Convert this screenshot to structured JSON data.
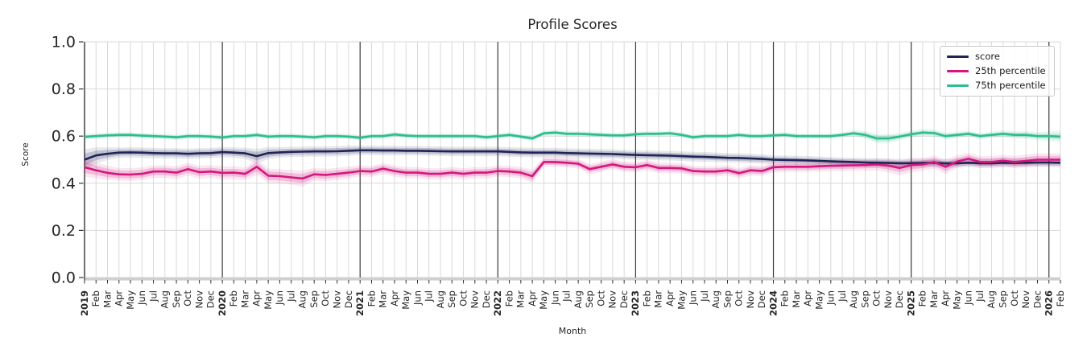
{
  "chart_data": {
    "type": "line",
    "title": "Profile Scores",
    "xlabel": "Month",
    "ylabel": "Score",
    "ylim": [
      0.0,
      1.0
    ],
    "yticks": [
      0.0,
      0.2,
      0.4,
      0.6,
      0.8,
      1.0
    ],
    "grid": "on",
    "legend_position": "upper right",
    "x_labels": [
      "2019",
      "Feb",
      "Mar",
      "Apr",
      "May",
      "Jun",
      "Jul",
      "Aug",
      "Sep",
      "Oct",
      "Nov",
      "Dec",
      "2020",
      "Feb",
      "Mar",
      "Apr",
      "May",
      "Jun",
      "Jul",
      "Aug",
      "Sep",
      "Oct",
      "Nov",
      "Dec",
      "2021",
      "Feb",
      "Mar",
      "Apr",
      "May",
      "Jun",
      "Jul",
      "Aug",
      "Sep",
      "Oct",
      "Nov",
      "Dec",
      "2022",
      "Feb",
      "Mar",
      "Apr",
      "May",
      "Jun",
      "Jul",
      "Aug",
      "Sep",
      "Oct",
      "Nov",
      "Dec",
      "2023",
      "Feb",
      "Mar",
      "Apr",
      "May",
      "Jun",
      "Jul",
      "Aug",
      "Sep",
      "Oct",
      "Nov",
      "Dec",
      "2024",
      "Feb",
      "Mar",
      "Apr",
      "May",
      "Jun",
      "Jul",
      "Aug",
      "Sep",
      "Oct",
      "Nov",
      "Dec",
      "2025",
      "Feb",
      "Mar",
      "Apr",
      "May",
      "Jun",
      "Jul",
      "Aug",
      "Sep",
      "Oct",
      "Nov",
      "Dec",
      "2026",
      "Feb"
    ],
    "series": [
      {
        "name": "score",
        "color": "#1f2456",
        "values": [
          0.5,
          0.518,
          0.525,
          0.53,
          0.531,
          0.53,
          0.528,
          0.527,
          0.527,
          0.525,
          0.527,
          0.528,
          0.532,
          0.53,
          0.527,
          0.515,
          0.528,
          0.531,
          0.533,
          0.534,
          0.535,
          0.535,
          0.536,
          0.538,
          0.54,
          0.54,
          0.539,
          0.539,
          0.538,
          0.538,
          0.537,
          0.536,
          0.535,
          0.535,
          0.535,
          0.535,
          0.535,
          0.533,
          0.531,
          0.53,
          0.53,
          0.53,
          0.528,
          0.527,
          0.526,
          0.525,
          0.524,
          0.522,
          0.52,
          0.519,
          0.518,
          0.517,
          0.515,
          0.513,
          0.512,
          0.51,
          0.508,
          0.507,
          0.505,
          0.503,
          0.5,
          0.499,
          0.498,
          0.497,
          0.495,
          0.493,
          0.491,
          0.49,
          0.488,
          0.487,
          0.486,
          0.485,
          0.485,
          0.486,
          0.487,
          0.484,
          0.485,
          0.487,
          0.485,
          0.485,
          0.487,
          0.486,
          0.487,
          0.488,
          0.488,
          0.487
        ],
        "ci": [
          0.026,
          0.02,
          0.016,
          0.013,
          0.013,
          0.013,
          0.013,
          0.013,
          0.013,
          0.013,
          0.013,
          0.013,
          0.013,
          0.013,
          0.014,
          0.018,
          0.015,
          0.013,
          0.013,
          0.013,
          0.013,
          0.013,
          0.013,
          0.013,
          0.012,
          0.012,
          0.012,
          0.012,
          0.012,
          0.012,
          0.012,
          0.012,
          0.012,
          0.012,
          0.012,
          0.012,
          0.012,
          0.012,
          0.012,
          0.012,
          0.012,
          0.012,
          0.012,
          0.012,
          0.012,
          0.012,
          0.012,
          0.012,
          0.012,
          0.012,
          0.012,
          0.012,
          0.012,
          0.012,
          0.012,
          0.012,
          0.012,
          0.012,
          0.012,
          0.012,
          0.011,
          0.011,
          0.011,
          0.011,
          0.011,
          0.011,
          0.011,
          0.011,
          0.011,
          0.011,
          0.011,
          0.011,
          0.011,
          0.011,
          0.011,
          0.011,
          0.011,
          0.011,
          0.011,
          0.011,
          0.011,
          0.011,
          0.011,
          0.011,
          0.011,
          0.011
        ]
      },
      {
        "name": "25th percentile",
        "color": "#d4177f",
        "values": [
          0.468,
          0.455,
          0.444,
          0.438,
          0.437,
          0.44,
          0.45,
          0.45,
          0.445,
          0.46,
          0.447,
          0.45,
          0.444,
          0.445,
          0.44,
          0.47,
          0.432,
          0.43,
          0.425,
          0.42,
          0.438,
          0.435,
          0.44,
          0.445,
          0.452,
          0.45,
          0.462,
          0.452,
          0.445,
          0.445,
          0.44,
          0.44,
          0.445,
          0.44,
          0.445,
          0.445,
          0.452,
          0.45,
          0.445,
          0.43,
          0.49,
          0.49,
          0.487,
          0.483,
          0.46,
          0.47,
          0.48,
          0.47,
          0.468,
          0.477,
          0.465,
          0.465,
          0.463,
          0.452,
          0.45,
          0.45,
          0.455,
          0.443,
          0.455,
          0.452,
          0.468,
          0.47,
          0.47,
          0.47,
          0.472,
          0.474,
          0.475,
          0.476,
          0.477,
          0.48,
          0.475,
          0.465,
          0.477,
          0.48,
          0.49,
          0.47,
          0.492,
          0.504,
          0.49,
          0.49,
          0.496,
          0.49,
          0.495,
          0.5,
          0.5,
          0.5
        ],
        "ci": [
          0.024,
          0.02,
          0.018,
          0.016,
          0.016,
          0.016,
          0.016,
          0.016,
          0.016,
          0.016,
          0.016,
          0.016,
          0.016,
          0.016,
          0.016,
          0.02,
          0.018,
          0.018,
          0.018,
          0.02,
          0.016,
          0.016,
          0.015,
          0.015,
          0.014,
          0.014,
          0.014,
          0.014,
          0.014,
          0.014,
          0.014,
          0.014,
          0.014,
          0.014,
          0.014,
          0.014,
          0.014,
          0.014,
          0.014,
          0.016,
          0.012,
          0.012,
          0.012,
          0.012,
          0.013,
          0.013,
          0.013,
          0.013,
          0.013,
          0.013,
          0.013,
          0.013,
          0.013,
          0.013,
          0.013,
          0.013,
          0.013,
          0.013,
          0.013,
          0.013,
          0.013,
          0.013,
          0.013,
          0.013,
          0.013,
          0.013,
          0.014,
          0.014,
          0.014,
          0.015,
          0.017,
          0.018,
          0.018,
          0.016,
          0.016,
          0.018,
          0.016,
          0.015,
          0.015,
          0.015,
          0.015,
          0.015,
          0.016,
          0.016,
          0.016,
          0.016
        ]
      },
      {
        "name": "75th percentile",
        "color": "#2cbd8e",
        "values": [
          0.597,
          0.6,
          0.603,
          0.605,
          0.605,
          0.602,
          0.6,
          0.598,
          0.595,
          0.6,
          0.6,
          0.598,
          0.594,
          0.6,
          0.6,
          0.605,
          0.598,
          0.6,
          0.6,
          0.598,
          0.595,
          0.6,
          0.6,
          0.598,
          0.593,
          0.6,
          0.6,
          0.607,
          0.602,
          0.6,
          0.6,
          0.6,
          0.6,
          0.6,
          0.6,
          0.595,
          0.6,
          0.605,
          0.598,
          0.59,
          0.612,
          0.615,
          0.61,
          0.61,
          0.608,
          0.605,
          0.603,
          0.603,
          0.608,
          0.61,
          0.61,
          0.612,
          0.605,
          0.595,
          0.6,
          0.6,
          0.6,
          0.605,
          0.6,
          0.6,
          0.603,
          0.605,
          0.6,
          0.6,
          0.6,
          0.6,
          0.605,
          0.612,
          0.605,
          0.59,
          0.59,
          0.598,
          0.608,
          0.615,
          0.613,
          0.6,
          0.605,
          0.61,
          0.6,
          0.605,
          0.61,
          0.605,
          0.605,
          0.6,
          0.6,
          0.598
        ],
        "ci": [
          0.007,
          0.007,
          0.007,
          0.007,
          0.007,
          0.007,
          0.007,
          0.007,
          0.007,
          0.007,
          0.007,
          0.007,
          0.007,
          0.007,
          0.007,
          0.007,
          0.007,
          0.007,
          0.007,
          0.007,
          0.007,
          0.007,
          0.007,
          0.007,
          0.007,
          0.007,
          0.007,
          0.007,
          0.007,
          0.007,
          0.007,
          0.007,
          0.007,
          0.007,
          0.007,
          0.007,
          0.007,
          0.007,
          0.007,
          0.007,
          0.007,
          0.007,
          0.007,
          0.007,
          0.007,
          0.007,
          0.007,
          0.007,
          0.007,
          0.007,
          0.007,
          0.007,
          0.007,
          0.007,
          0.007,
          0.007,
          0.007,
          0.007,
          0.007,
          0.007,
          0.007,
          0.007,
          0.007,
          0.007,
          0.007,
          0.007,
          0.007,
          0.008,
          0.01,
          0.012,
          0.012,
          0.009,
          0.009,
          0.009,
          0.009,
          0.009,
          0.008,
          0.008,
          0.008,
          0.008,
          0.009,
          0.009,
          0.01,
          0.01,
          0.012,
          0.014
        ]
      }
    ],
    "colors": {
      "grid": "#d9d9d9",
      "year_line": "#3d3d3d",
      "bottom_spine": "#cfcfcf",
      "left_spine": "#2e2e2e",
      "text": "#262626"
    }
  }
}
